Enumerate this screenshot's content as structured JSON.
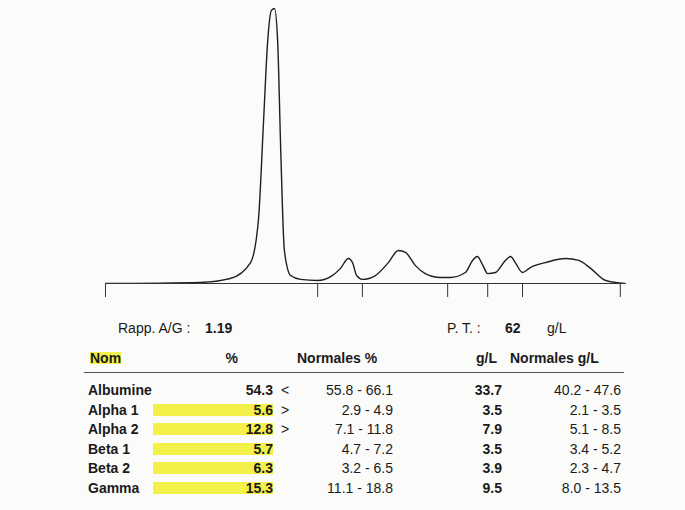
{
  "chart_data": {
    "type": "line",
    "x": [
      0,
      18.3,
      24.0,
      27.9,
      29.4,
      30.4,
      31.2,
      31.9,
      32.5,
      33.1,
      33.7,
      34.4,
      35.6,
      37.5,
      40.8,
      43.3,
      45.2,
      46.7,
      47.5,
      48.3,
      49.4,
      51.9,
      54.4,
      56.3,
      57.7,
      59.6,
      61.5,
      64.4,
      66.3,
      69.2,
      70.6,
      71.5,
      72.5,
      73.5,
      75.0,
      76.9,
      77.9,
      78.8,
      80.2,
      81.7,
      84.6,
      88.5,
      91.0,
      93.3,
      96.2,
      100
    ],
    "values": [
      0,
      0.4,
      1.8,
      7.6,
      22.9,
      59.3,
      88.4,
      99.3,
      100,
      88.4,
      48.4,
      12.0,
      2.9,
      1.5,
      1.1,
      2.5,
      5.5,
      9.1,
      7.6,
      2.9,
      1.5,
      2.9,
      7.6,
      12.0,
      11.3,
      6.5,
      3.6,
      2.2,
      2.2,
      4.0,
      8.4,
      9.8,
      6.9,
      3.6,
      4.0,
      8.4,
      9.8,
      7.6,
      4.0,
      5.8,
      7.6,
      9.1,
      8.4,
      5.5,
      1.1,
      0
    ],
    "color": "#1f1f1f",
    "xlim": [
      0,
      100
    ],
    "ylim": [
      0,
      100
    ],
    "xticks": [
      0,
      40.8,
      49.4,
      65.8,
      73.5,
      80.2,
      99
    ],
    "tick_labels": false
  },
  "report": {
    "ratio": {
      "label": "Rapp. A/G :",
      "value": 1.19
    },
    "total_protein": {
      "label": "P. T. :",
      "value": 62,
      "unit": "g/L"
    },
    "table": {
      "columns": [
        "Nom",
        "%",
        "Normales %",
        "g/L",
        "Normales g/L"
      ],
      "rows": [
        {
          "name": "Albumine",
          "percent": 54.3,
          "flag": "<",
          "normal_percent": "55.8 - 66.1",
          "g_l": 33.7,
          "normal_g_l": "40.2 - 47.6",
          "highlight": false
        },
        {
          "name": "Alpha 1",
          "percent": 5.6,
          "flag": ">",
          "normal_percent": "2.9 - 4.9",
          "g_l": 3.5,
          "normal_g_l": "2.1 - 3.5",
          "highlight": true
        },
        {
          "name": "Alpha 2",
          "percent": 12.8,
          "flag": ">",
          "normal_percent": "7.1 - 11.8",
          "g_l": 7.9,
          "normal_g_l": "5.1 - 8.5",
          "highlight": true
        },
        {
          "name": "Beta 1",
          "percent": 5.7,
          "flag": null,
          "normal_percent": "4.7 - 7.2",
          "g_l": 3.5,
          "normal_g_l": "3.4 - 5.2",
          "highlight": true
        },
        {
          "name": "Beta 2",
          "percent": 6.3,
          "flag": null,
          "normal_percent": "3.2 - 6.5",
          "g_l": 3.9,
          "normal_g_l": "2.3 - 4.7",
          "highlight": true
        },
        {
          "name": "Gamma",
          "percent": 15.3,
          "flag": null,
          "normal_percent": "11.1 - 18.8",
          "g_l": 9.5,
          "normal_g_l": "8.0 - 13.5",
          "highlight": true
        }
      ]
    }
  }
}
